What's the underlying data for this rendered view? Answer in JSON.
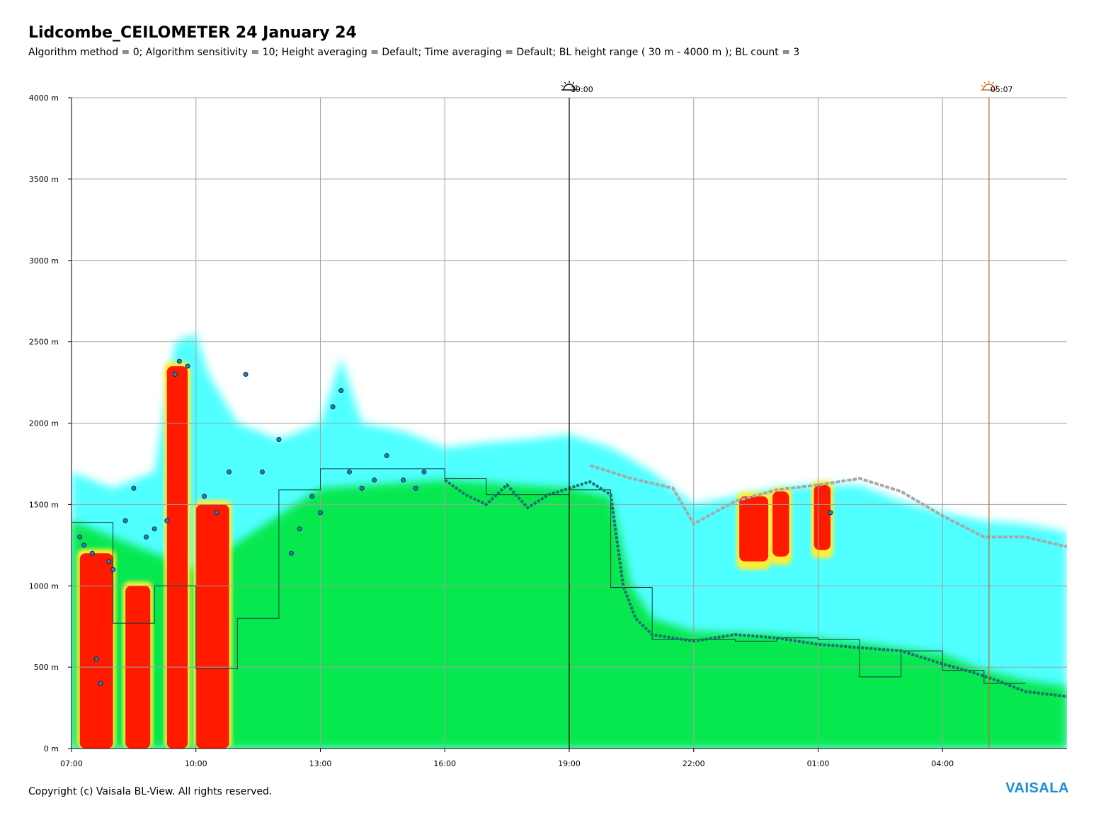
{
  "header": {
    "title": "Lidcombe_CEILOMETER 24 January 24",
    "subtitle": "Algorithm method = 0; Algorithm sensitivity = 10; Height averaging = Default; Time averaging = Default; BL height range ( 30 m - 4000 m ); BL count = 3"
  },
  "footer": {
    "copyright": "Copyright (c) Vaisala BL-View. All rights reserved.",
    "logo": "VAISALA"
  },
  "colors": {
    "grid": "#a0a0a0",
    "sunset_line": "#000000",
    "sunrise_line": "#c8641e",
    "green": "#00e63c",
    "cyan": "#33ffff",
    "red": "#ff1a00",
    "yellow": "#ffee33",
    "bl_dots": "#1e6e6e",
    "cloud_markers": "#2a7fc0",
    "logo": "#1a8fd6"
  },
  "chart_data": {
    "type": "heatmap",
    "title": "Lidcombe_CEILOMETER 24 January 24",
    "x_ticks": [
      "07:00",
      "10:00",
      "13:00",
      "16:00",
      "19:00",
      "22:00",
      "01:00",
      "04:00"
    ],
    "y_ticks": [
      "0 m",
      "500 m",
      "1000 m",
      "1500 m",
      "2000 m",
      "2500 m",
      "3000 m",
      "3500 m",
      "4000 m"
    ],
    "xlim_hours": [
      7,
      31
    ],
    "ylim": [
      0,
      4000
    ],
    "grid": true,
    "events": [
      {
        "label": "19:00",
        "hour": 19,
        "kind": "sunset"
      },
      {
        "label": "05:07",
        "hour": 29.12,
        "kind": "sunrise"
      }
    ],
    "backscatter_top_m": [
      [
        7.0,
        1700
      ],
      [
        8.0,
        1600
      ],
      [
        9.0,
        1700
      ],
      [
        9.5,
        2500
      ],
      [
        10.0,
        2550
      ],
      [
        10.3,
        2300
      ],
      [
        11.0,
        2000
      ],
      [
        12.0,
        1900
      ],
      [
        13.0,
        2000
      ],
      [
        13.5,
        2400
      ],
      [
        14.0,
        2000
      ],
      [
        15.0,
        1950
      ],
      [
        16.0,
        1850
      ],
      [
        17.0,
        1880
      ],
      [
        18.0,
        1900
      ],
      [
        19.0,
        1930
      ],
      [
        20.0,
        1850
      ],
      [
        21.0,
        1700
      ],
      [
        22.0,
        1500
      ],
      [
        23.0,
        1550
      ],
      [
        24.0,
        1600
      ],
      [
        25.0,
        1620
      ],
      [
        26.0,
        1620
      ],
      [
        27.0,
        1520
      ],
      [
        28.0,
        1450
      ],
      [
        29.0,
        1400
      ],
      [
        30.0,
        1380
      ],
      [
        31.0,
        1330
      ]
    ],
    "green_layer_top_m": [
      [
        7.0,
        1400
      ],
      [
        10.0,
        1100
      ],
      [
        13.0,
        1600
      ],
      [
        16.0,
        1650
      ],
      [
        19.0,
        1600
      ],
      [
        20.0,
        1550
      ],
      [
        20.5,
        1000
      ],
      [
        21.0,
        800
      ],
      [
        22.0,
        720
      ],
      [
        24.0,
        700
      ],
      [
        26.0,
        650
      ],
      [
        28.0,
        580
      ],
      [
        29.0,
        480
      ],
      [
        30.0,
        420
      ],
      [
        31.0,
        380
      ]
    ],
    "bl_height_step_m": [
      [
        7.0,
        1390
      ],
      [
        8.0,
        1390
      ],
      [
        8.0,
        770
      ],
      [
        9.0,
        770
      ],
      [
        9.0,
        1000
      ],
      [
        10.0,
        1000
      ],
      [
        10.0,
        490
      ],
      [
        11.0,
        490
      ],
      [
        11.0,
        800
      ],
      [
        12.0,
        800
      ],
      [
        12.0,
        1590
      ],
      [
        13.0,
        1590
      ],
      [
        13.0,
        1720
      ],
      [
        16.0,
        1720
      ],
      [
        16.0,
        1660
      ],
      [
        17.0,
        1660
      ],
      [
        17.0,
        1560
      ],
      [
        19.0,
        1560
      ],
      [
        19.0,
        1590
      ],
      [
        20.0,
        1590
      ],
      [
        20.0,
        990
      ],
      [
        21.0,
        990
      ],
      [
        21.0,
        670
      ],
      [
        23.0,
        670
      ],
      [
        23.0,
        660
      ],
      [
        24.0,
        660
      ],
      [
        24.0,
        680
      ],
      [
        25.0,
        680
      ],
      [
        25.0,
        670
      ],
      [
        26.0,
        670
      ],
      [
        26.0,
        440
      ],
      [
        27.0,
        440
      ],
      [
        27.0,
        600
      ],
      [
        28.0,
        600
      ],
      [
        28.0,
        480
      ],
      [
        29.0,
        480
      ],
      [
        29.0,
        400
      ],
      [
        30.0,
        400
      ]
    ],
    "bl_dots_m": [
      [
        16.0,
        1650
      ],
      [
        16.5,
        1560
      ],
      [
        17.0,
        1500
      ],
      [
        17.5,
        1620
      ],
      [
        18.0,
        1480
      ],
      [
        18.5,
        1560
      ],
      [
        19.0,
        1600
      ],
      [
        19.5,
        1640
      ],
      [
        20.0,
        1560
      ],
      [
        20.3,
        1000
      ],
      [
        20.6,
        800
      ],
      [
        21.0,
        700
      ],
      [
        22.0,
        660
      ],
      [
        23.0,
        700
      ],
      [
        24.0,
        680
      ],
      [
        25.0,
        640
      ],
      [
        26.0,
        620
      ],
      [
        27.0,
        600
      ],
      [
        28.0,
        520
      ],
      [
        28.7,
        470
      ],
      [
        29.3,
        420
      ],
      [
        30.0,
        350
      ],
      [
        31.0,
        320
      ]
    ],
    "upper_layer_m": [
      [
        19.5,
        1740
      ],
      [
        20.5,
        1660
      ],
      [
        21.5,
        1600
      ],
      [
        22.0,
        1380
      ],
      [
        23.0,
        1520
      ],
      [
        24.0,
        1590
      ],
      [
        25.0,
        1620
      ],
      [
        26.0,
        1660
      ],
      [
        27.0,
        1580
      ],
      [
        28.0,
        1430
      ],
      [
        29.0,
        1300
      ],
      [
        30.0,
        1300
      ],
      [
        31.0,
        1240
      ]
    ],
    "red_patches": [
      {
        "start": 7.2,
        "end": 8.0,
        "top": 1200
      },
      {
        "start": 8.3,
        "end": 8.9,
        "top": 1000
      },
      {
        "start": 9.3,
        "end": 9.8,
        "top": 2350
      },
      {
        "start": 10.0,
        "end": 10.8,
        "top": 1500
      },
      {
        "start": 23.1,
        "end": 23.8,
        "top": 1550
      },
      {
        "start": 23.9,
        "end": 24.3,
        "top": 1580
      },
      {
        "start": 24.9,
        "end": 25.3,
        "top": 1620
      }
    ],
    "cloud_points_m": [
      [
        7.2,
        1300
      ],
      [
        7.3,
        1250
      ],
      [
        7.5,
        1200
      ],
      [
        7.6,
        550
      ],
      [
        7.7,
        400
      ],
      [
        7.9,
        1150
      ],
      [
        8.0,
        1100
      ],
      [
        8.3,
        1400
      ],
      [
        8.5,
        1600
      ],
      [
        8.8,
        1300
      ],
      [
        9.0,
        1350
      ],
      [
        9.3,
        1400
      ],
      [
        9.5,
        2300
      ],
      [
        9.6,
        2380
      ],
      [
        9.8,
        2350
      ],
      [
        10.2,
        1550
      ],
      [
        10.5,
        1450
      ],
      [
        10.8,
        1700
      ],
      [
        11.2,
        2300
      ],
      [
        11.6,
        1700
      ],
      [
        12.0,
        1900
      ],
      [
        12.3,
        1200
      ],
      [
        12.5,
        1350
      ],
      [
        12.8,
        1550
      ],
      [
        13.0,
        1450
      ],
      [
        13.3,
        2100
      ],
      [
        13.5,
        2200
      ],
      [
        13.7,
        1700
      ],
      [
        14.0,
        1600
      ],
      [
        14.3,
        1650
      ],
      [
        14.6,
        1800
      ],
      [
        15.0,
        1650
      ],
      [
        15.3,
        1600
      ],
      [
        15.5,
        1700
      ],
      [
        25.3,
        1450
      ]
    ]
  }
}
